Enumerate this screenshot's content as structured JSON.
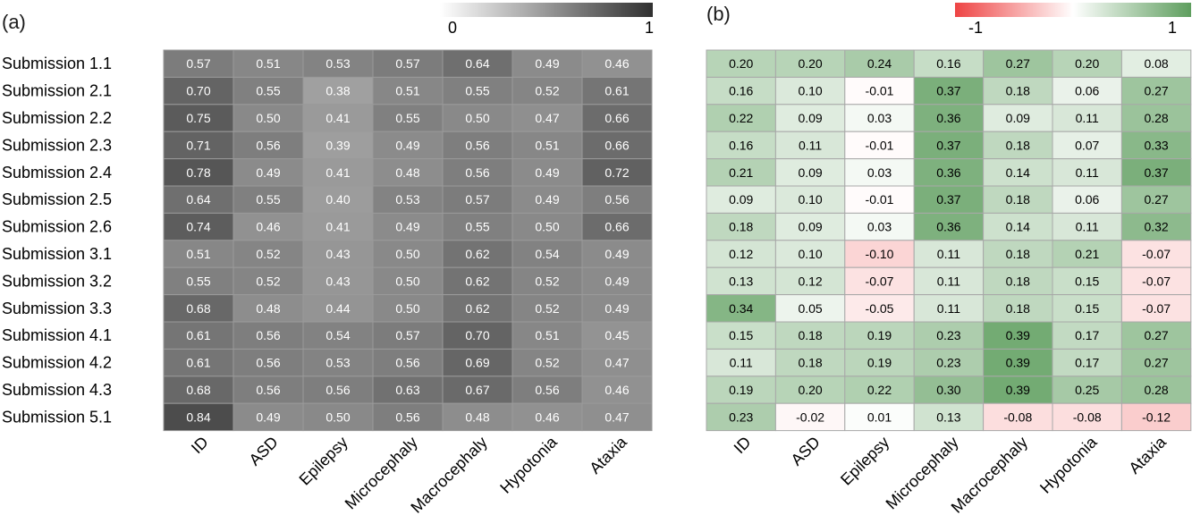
{
  "colors": {
    "gray_dark": "#303030",
    "gray_light": "#f8f8f8",
    "green": "#5e9e5e",
    "red": "#ee4444",
    "cell_border_a": "#9a9a9a",
    "cell_border_b": "#a8a8a8"
  },
  "chart_data": [
    {
      "type": "heatmap",
      "panel_label": "(a)",
      "rows": [
        "Submission 1.1",
        "Submission 2.1",
        "Submission 2.2",
        "Submission 2.3",
        "Submission 2.4",
        "Submission 2.5",
        "Submission 2.6",
        "Submission 3.1",
        "Submission 3.2",
        "Submission 3.3",
        "Submission 4.1",
        "Submission 4.2",
        "Submission 4.3",
        "Submission 5.1"
      ],
      "columns": [
        "ID",
        "ASD",
        "Epilepsy",
        "Microcephaly",
        "Macrocephaly",
        "Hypotonia",
        "Ataxia"
      ],
      "values": [
        [
          0.57,
          0.51,
          0.53,
          0.57,
          0.64,
          0.49,
          0.46
        ],
        [
          0.7,
          0.55,
          0.38,
          0.51,
          0.55,
          0.52,
          0.61
        ],
        [
          0.75,
          0.5,
          0.41,
          0.55,
          0.5,
          0.47,
          0.66
        ],
        [
          0.71,
          0.56,
          0.39,
          0.49,
          0.56,
          0.51,
          0.66
        ],
        [
          0.78,
          0.49,
          0.41,
          0.48,
          0.56,
          0.49,
          0.72
        ],
        [
          0.64,
          0.55,
          0.4,
          0.53,
          0.57,
          0.49,
          0.56
        ],
        [
          0.74,
          0.46,
          0.41,
          0.49,
          0.55,
          0.5,
          0.66
        ],
        [
          0.51,
          0.52,
          0.43,
          0.5,
          0.62,
          0.54,
          0.49
        ],
        [
          0.55,
          0.52,
          0.43,
          0.5,
          0.62,
          0.52,
          0.49
        ],
        [
          0.68,
          0.48,
          0.44,
          0.5,
          0.62,
          0.52,
          0.49
        ],
        [
          0.61,
          0.56,
          0.54,
          0.57,
          0.7,
          0.51,
          0.45
        ],
        [
          0.61,
          0.56,
          0.53,
          0.56,
          0.69,
          0.52,
          0.47
        ],
        [
          0.68,
          0.56,
          0.56,
          0.63,
          0.67,
          0.56,
          0.46
        ],
        [
          0.84,
          0.49,
          0.5,
          0.56,
          0.48,
          0.46,
          0.47
        ]
      ],
      "colorbar": {
        "min": 0,
        "max": 1,
        "min_label": "0",
        "max_label": "1",
        "scale": "white-to-dark-gray"
      }
    },
    {
      "type": "heatmap",
      "panel_label": "(b)",
      "columns": [
        "ID",
        "ASD",
        "Epilepsy",
        "Microcephaly",
        "Macrocephaly",
        "Hypotonia",
        "Ataxia"
      ],
      "values": [
        [
          0.2,
          0.2,
          0.24,
          0.16,
          0.27,
          0.2,
          0.08
        ],
        [
          0.16,
          0.1,
          -0.01,
          0.37,
          0.18,
          0.06,
          0.27
        ],
        [
          0.22,
          0.09,
          0.03,
          0.36,
          0.09,
          0.11,
          0.28
        ],
        [
          0.16,
          0.11,
          -0.01,
          0.37,
          0.18,
          0.07,
          0.33
        ],
        [
          0.21,
          0.09,
          0.03,
          0.36,
          0.14,
          0.11,
          0.37
        ],
        [
          0.09,
          0.1,
          -0.01,
          0.37,
          0.18,
          0.06,
          0.27
        ],
        [
          0.18,
          0.09,
          0.03,
          0.36,
          0.14,
          0.11,
          0.32
        ],
        [
          0.12,
          0.1,
          -0.1,
          0.11,
          0.18,
          0.21,
          -0.07
        ],
        [
          0.13,
          0.12,
          -0.07,
          0.11,
          0.18,
          0.15,
          -0.07
        ],
        [
          0.34,
          0.05,
          -0.05,
          0.11,
          0.18,
          0.15,
          -0.07
        ],
        [
          0.15,
          0.18,
          0.19,
          0.23,
          0.39,
          0.17,
          0.27
        ],
        [
          0.11,
          0.18,
          0.19,
          0.23,
          0.39,
          0.17,
          0.27
        ],
        [
          0.19,
          0.2,
          0.22,
          0.3,
          0.39,
          0.25,
          0.28
        ],
        [
          0.23,
          -0.02,
          0.01,
          0.13,
          -0.08,
          -0.08,
          -0.12
        ]
      ],
      "colorbar": {
        "min": -1,
        "max": 1,
        "min_label": "-1",
        "max_label": "1",
        "scale": "red-white-green"
      }
    }
  ]
}
